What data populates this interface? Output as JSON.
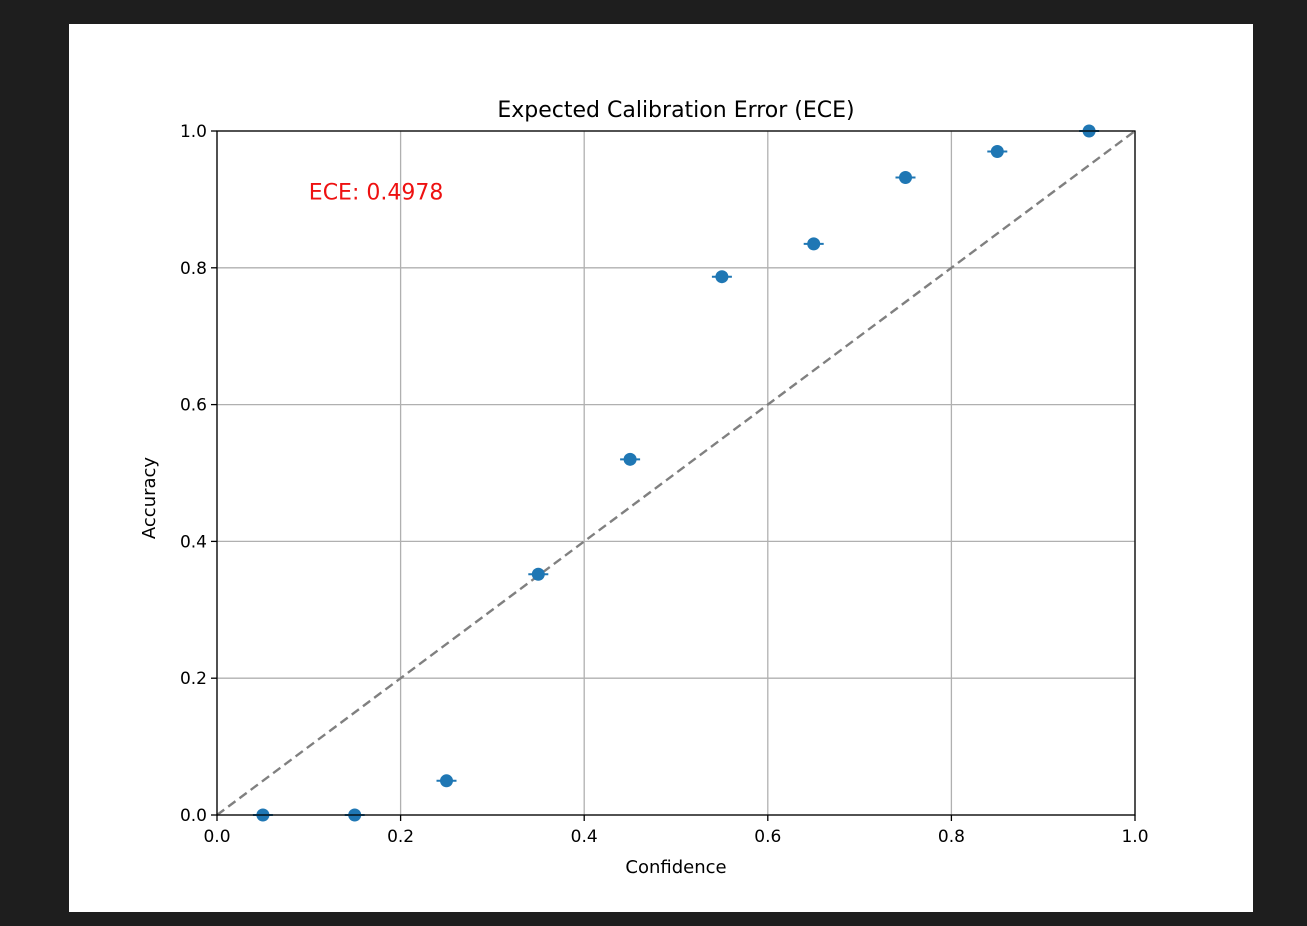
{
  "chart_data": {
    "type": "scatter",
    "title": "Expected Calibration Error (ECE)",
    "xlabel": "Confidence",
    "ylabel": "Accuracy",
    "xlim": [
      0.0,
      1.0
    ],
    "ylim": [
      0.0,
      1.0
    ],
    "xticks": [
      "0.0",
      "0.2",
      "0.4",
      "0.6",
      "0.8",
      "1.0"
    ],
    "yticks": [
      "0.0",
      "0.2",
      "0.4",
      "0.6",
      "0.8",
      "1.0"
    ],
    "grid": true,
    "annotation": "ECE: 0.4978",
    "reference_line": {
      "from": [
        0,
        0
      ],
      "to": [
        1,
        1
      ],
      "style": "dashed",
      "color": "#808080"
    },
    "point_color": "#1f77b4",
    "annotation_color": "#ee1111",
    "points": [
      {
        "x": 0.05,
        "y": 0.0
      },
      {
        "x": 0.15,
        "y": 0.0
      },
      {
        "x": 0.25,
        "y": 0.05
      },
      {
        "x": 0.35,
        "y": 0.352
      },
      {
        "x": 0.45,
        "y": 0.52
      },
      {
        "x": 0.55,
        "y": 0.787
      },
      {
        "x": 0.65,
        "y": 0.835
      },
      {
        "x": 0.75,
        "y": 0.932
      },
      {
        "x": 0.85,
        "y": 0.97
      },
      {
        "x": 0.95,
        "y": 1.0
      }
    ]
  }
}
